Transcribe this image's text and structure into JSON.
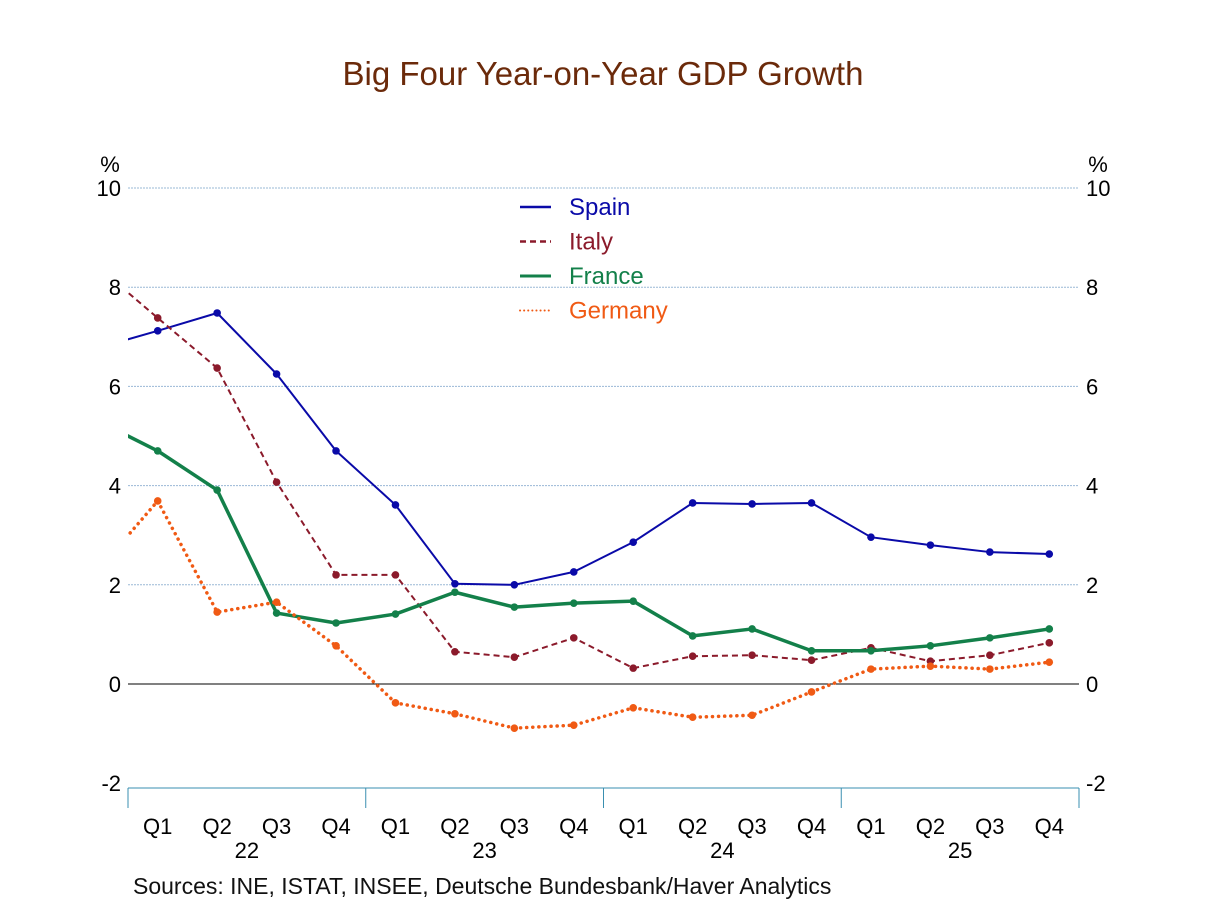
{
  "chart_data": {
    "type": "line",
    "title": "Big Four Year-on-Year GDP Growth",
    "ylabel_left": "%",
    "ylabel_right": "%",
    "ylim": [
      -2,
      10
    ],
    "yticks": [
      -2,
      0,
      2,
      4,
      6,
      8,
      10
    ],
    "grid": true,
    "legend_position": "top-center",
    "categories": [
      "Q1",
      "Q2",
      "Q3",
      "Q4",
      "Q1",
      "Q2",
      "Q3",
      "Q4",
      "Q1",
      "Q2",
      "Q3",
      "Q4",
      "Q1",
      "Q2",
      "Q3",
      "Q4"
    ],
    "years": [
      "22",
      "23",
      "24",
      "25"
    ],
    "series": [
      {
        "name": "Spain",
        "color": "#0a0aa8",
        "style": "solid",
        "prior_value": 6.78,
        "values": [
          7.12,
          7.48,
          6.25,
          4.7,
          3.61,
          2.02,
          2.0,
          2.26,
          2.86,
          3.65,
          3.63,
          3.65,
          2.96,
          2.8,
          2.66,
          2.62
        ]
      },
      {
        "name": "Italy",
        "color": "#8b1a2b",
        "style": "dashed",
        "prior_value": 8.4,
        "values": [
          7.38,
          6.37,
          4.07,
          2.2,
          2.2,
          0.65,
          0.54,
          0.93,
          0.32,
          0.56,
          0.58,
          0.48,
          0.73,
          0.46,
          0.58,
          0.83
        ]
      },
      {
        "name": "France",
        "color": "#13804a",
        "style": "solid-thick",
        "prior_value": 5.3,
        "values": [
          4.7,
          3.91,
          1.43,
          1.23,
          1.41,
          1.85,
          1.55,
          1.63,
          1.67,
          0.97,
          1.11,
          0.67,
          0.67,
          0.77,
          0.93,
          1.11
        ]
      },
      {
        "name": "Germany",
        "color": "#f05a14",
        "style": "dotted",
        "prior_value": 2.3,
        "values": [
          3.69,
          1.45,
          1.65,
          0.77,
          -0.38,
          -0.6,
          -0.89,
          -0.83,
          -0.48,
          -0.67,
          -0.63,
          -0.16,
          0.3,
          0.36,
          0.3,
          0.44
        ]
      }
    ],
    "sources": "Sources:   INE, ISTAT, INSEE, Deutsche Bundesbank/Haver Analytics"
  }
}
